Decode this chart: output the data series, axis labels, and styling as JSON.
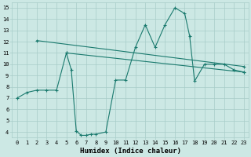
{
  "line1_x": [
    0,
    1,
    2,
    3,
    4,
    5,
    5.5,
    6,
    6.5,
    7,
    7.5,
    8,
    9,
    10,
    11,
    12,
    13,
    14,
    15,
    16,
    17,
    17.5,
    18,
    19,
    20,
    21,
    22,
    23
  ],
  "line1_y": [
    7.0,
    7.5,
    7.7,
    7.7,
    7.7,
    11.0,
    9.5,
    4.1,
    3.7,
    3.7,
    3.8,
    3.8,
    4.0,
    8.6,
    8.6,
    11.5,
    13.5,
    11.5,
    13.5,
    15.0,
    14.5,
    12.5,
    8.5,
    10.0,
    10.0,
    10.0,
    9.5,
    9.3
  ],
  "line2_x": [
    2,
    23
  ],
  "line2_y": [
    12.1,
    9.8
  ],
  "line3_x": [
    5,
    23
  ],
  "line3_y": [
    11.0,
    9.3
  ],
  "line_color": "#1a7a6e",
  "bg_color": "#cce8e4",
  "grid_color": "#a8ccc8",
  "xlabel": "Humidex (Indice chaleur)",
  "xlim": [
    -0.5,
    23.5
  ],
  "ylim": [
    3.5,
    15.5
  ],
  "xticks": [
    0,
    1,
    2,
    3,
    4,
    5,
    6,
    7,
    8,
    9,
    10,
    11,
    12,
    13,
    14,
    15,
    16,
    17,
    18,
    19,
    20,
    21,
    22,
    23
  ],
  "yticks": [
    4,
    5,
    6,
    7,
    8,
    9,
    10,
    11,
    12,
    13,
    14,
    15
  ],
  "tick_fontsize": 5,
  "xlabel_fontsize": 6.5
}
